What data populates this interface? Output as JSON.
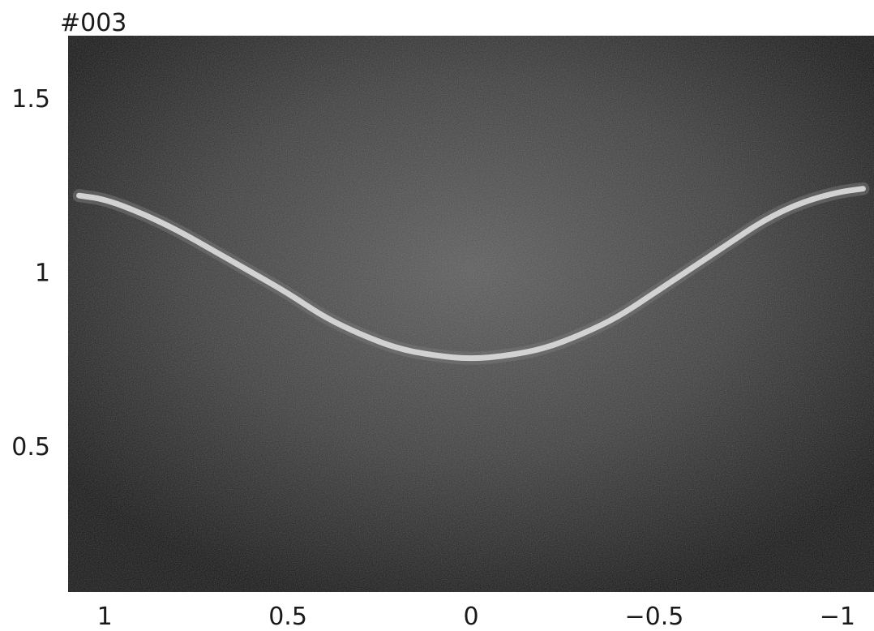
{
  "page": {
    "title": "#003"
  },
  "colors": {
    "plot_background": "#121212",
    "glow": "#5a5a5a",
    "curve": "#d2d2d2",
    "text": "#1a1a1a"
  },
  "chart_data": {
    "type": "line",
    "title": "#003",
    "xlabel": "",
    "ylabel": "",
    "xlim": [
      1.1,
      -1.1
    ],
    "ylim": [
      0.08,
      1.68
    ],
    "x_reversed": true,
    "grid": false,
    "xticks": [
      {
        "value": 1,
        "label": "1"
      },
      {
        "value": 0.5,
        "label": "0.5"
      },
      {
        "value": 0,
        "label": "0"
      },
      {
        "value": -0.5,
        "label": "−0.5"
      },
      {
        "value": -1,
        "label": "−1"
      }
    ],
    "yticks": [
      {
        "value": 1.5,
        "label": "1.5"
      },
      {
        "value": 1,
        "label": "1"
      },
      {
        "value": 0.5,
        "label": "0.5"
      }
    ],
    "series": [
      {
        "x": [
          1.07,
          1.0,
          0.9,
          0.8,
          0.7,
          0.6,
          0.5,
          0.4,
          0.3,
          0.2,
          0.1,
          0.0,
          -0.1,
          -0.2,
          -0.3,
          -0.4,
          -0.5,
          -0.6,
          -0.7,
          -0.8,
          -0.9,
          -1.0,
          -1.07
        ],
        "y": [
          1.22,
          1.21,
          1.17,
          1.12,
          1.06,
          1.0,
          0.94,
          0.87,
          0.82,
          0.78,
          0.76,
          0.75,
          0.76,
          0.78,
          0.82,
          0.87,
          0.94,
          1.01,
          1.08,
          1.15,
          1.2,
          1.23,
          1.24
        ]
      }
    ]
  }
}
